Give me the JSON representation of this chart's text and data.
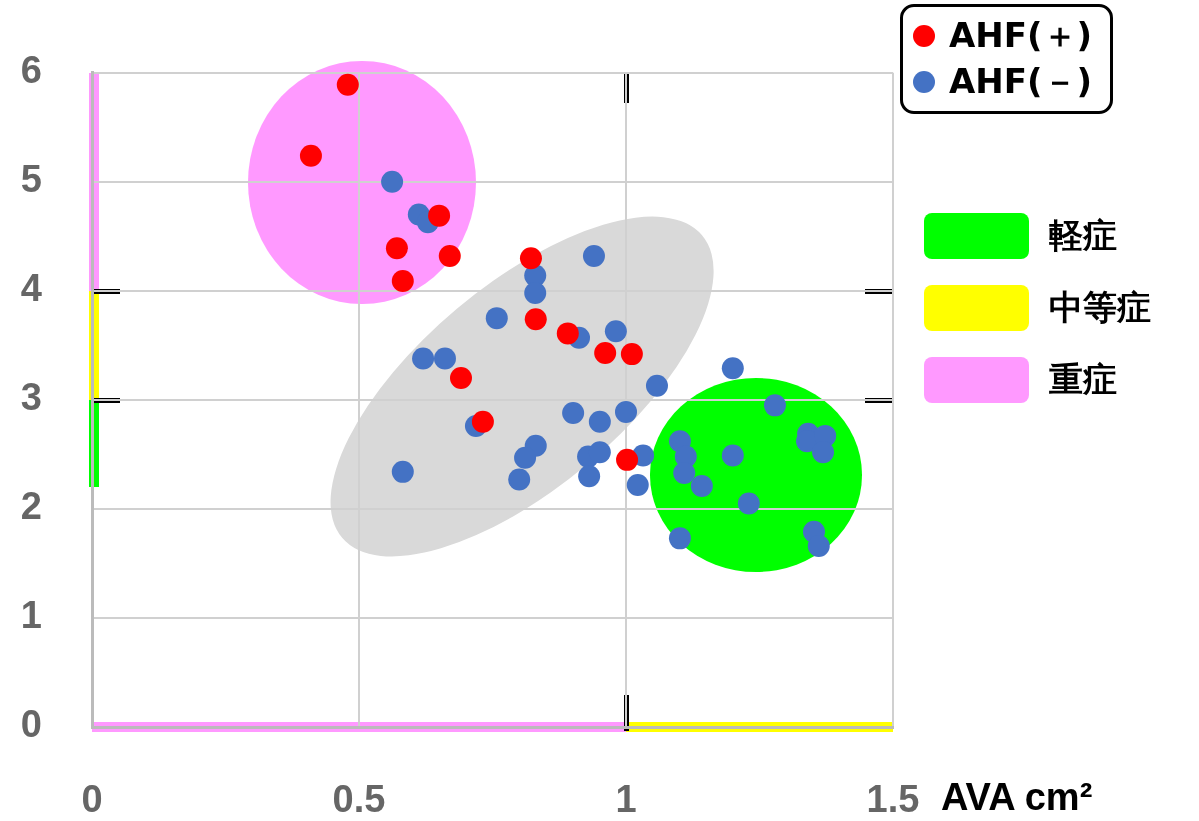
{
  "chart_data": {
    "type": "scatter",
    "xlabel": "AVA cm²",
    "xlim": [
      0,
      1.5
    ],
    "xticks": [
      0,
      0.5,
      1,
      1.5
    ],
    "ylim": [
      0,
      6
    ],
    "yticks": [
      0,
      1,
      2,
      3,
      4,
      5,
      6
    ],
    "grid": true,
    "legend": "top right",
    "marker": "circle",
    "series": [
      {
        "name": "AHF(＋)",
        "color": "#ff0000",
        "x": [
          0.479,
          0.41,
          0.65,
          0.571,
          0.67,
          0.582,
          0.822,
          0.831,
          0.891,
          0.961,
          1.011,
          0.691,
          0.732,
          1.002
        ],
        "values": [
          5.89,
          5.24,
          4.69,
          4.39,
          4.32,
          4.09,
          4.3,
          3.74,
          3.61,
          3.43,
          3.42,
          3.2,
          2.8,
          2.45
        ]
      },
      {
        "name": "AHF(－)",
        "color": "#4472c4",
        "x": [
          0.562,
          0.612,
          0.629,
          0.94,
          0.83,
          0.83,
          0.758,
          0.912,
          0.981,
          0.62,
          0.661,
          1.058,
          1.2,
          1.279,
          0.901,
          0.951,
          1.0,
          0.719,
          0.831,
          0.811,
          0.929,
          0.951,
          1.032,
          0.931,
          0.8,
          1.022,
          0.582,
          1.101,
          1.112,
          1.109,
          1.142,
          1.2,
          1.23,
          1.101,
          1.341,
          1.339,
          1.373,
          1.369,
          1.352,
          1.361
        ],
        "values": [
          5.0,
          4.7,
          4.63,
          4.32,
          4.14,
          3.98,
          3.75,
          3.57,
          3.63,
          3.38,
          3.38,
          3.13,
          3.29,
          2.95,
          2.88,
          2.8,
          2.89,
          2.76,
          2.58,
          2.47,
          2.48,
          2.52,
          2.49,
          2.3,
          2.27,
          2.22,
          2.34,
          2.62,
          2.48,
          2.33,
          2.21,
          2.49,
          2.05,
          1.73,
          2.69,
          2.62,
          2.67,
          2.52,
          1.79,
          1.66
        ]
      }
    ],
    "annotations": [
      "軽症",
      "中等症",
      "重症"
    ]
  }
}
